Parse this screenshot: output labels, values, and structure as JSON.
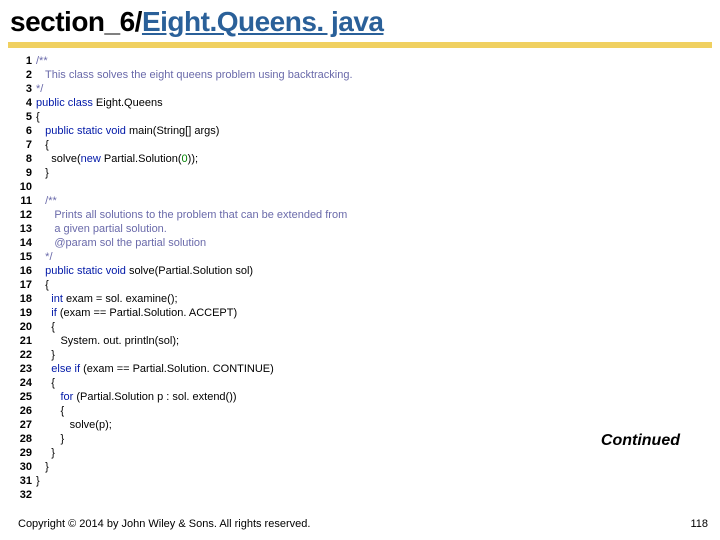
{
  "title": {
    "part1": "section_6/",
    "part2": "Eight.Queens. java"
  },
  "code_lines": [
    {
      "n": "1",
      "tokens": [
        {
          "t": "comment",
          "v": "/**"
        }
      ]
    },
    {
      "n": "2",
      "tokens": [
        {
          "t": "plain",
          "v": "   "
        },
        {
          "t": "comment",
          "v": "This class solves the eight queens problem using backtracking."
        }
      ]
    },
    {
      "n": "3",
      "tokens": [
        {
          "t": "comment",
          "v": "*/"
        }
      ]
    },
    {
      "n": "4",
      "tokens": [
        {
          "t": "kw",
          "v": "public class "
        },
        {
          "t": "plain",
          "v": "Eight.Queens"
        }
      ]
    },
    {
      "n": "5",
      "tokens": [
        {
          "t": "plain",
          "v": "{"
        }
      ]
    },
    {
      "n": "6",
      "tokens": [
        {
          "t": "plain",
          "v": "   "
        },
        {
          "t": "kw",
          "v": "public static void "
        },
        {
          "t": "plain",
          "v": "main(String[] args)"
        }
      ]
    },
    {
      "n": "7",
      "tokens": [
        {
          "t": "plain",
          "v": "   {"
        }
      ]
    },
    {
      "n": "8",
      "tokens": [
        {
          "t": "plain",
          "v": "     solve("
        },
        {
          "t": "kw",
          "v": "new "
        },
        {
          "t": "plain",
          "v": "Partial.Solution("
        },
        {
          "t": "num",
          "v": "0"
        },
        {
          "t": "plain",
          "v": "));"
        }
      ]
    },
    {
      "n": "9",
      "tokens": [
        {
          "t": "plain",
          "v": "   }"
        }
      ]
    },
    {
      "n": "10",
      "tokens": [
        {
          "t": "plain",
          "v": ""
        }
      ]
    },
    {
      "n": "11",
      "tokens": [
        {
          "t": "plain",
          "v": "   "
        },
        {
          "t": "comment",
          "v": "/**"
        }
      ]
    },
    {
      "n": "12",
      "tokens": [
        {
          "t": "plain",
          "v": "      "
        },
        {
          "t": "comment",
          "v": "Prints all solutions to the problem that can be extended from"
        }
      ]
    },
    {
      "n": "13",
      "tokens": [
        {
          "t": "plain",
          "v": "      "
        },
        {
          "t": "comment",
          "v": "a given partial solution."
        }
      ]
    },
    {
      "n": "14",
      "tokens": [
        {
          "t": "plain",
          "v": "      "
        },
        {
          "t": "comment",
          "v": "@param sol "
        },
        {
          "t": "comment",
          "v": "the partial solution"
        }
      ]
    },
    {
      "n": "15",
      "tokens": [
        {
          "t": "plain",
          "v": "   "
        },
        {
          "t": "comment",
          "v": "*/"
        }
      ]
    },
    {
      "n": "16",
      "tokens": [
        {
          "t": "plain",
          "v": "   "
        },
        {
          "t": "kw",
          "v": "public static void "
        },
        {
          "t": "plain",
          "v": "solve(Partial.Solution sol)"
        }
      ]
    },
    {
      "n": "17",
      "tokens": [
        {
          "t": "plain",
          "v": "   {"
        }
      ]
    },
    {
      "n": "18",
      "tokens": [
        {
          "t": "plain",
          "v": "     "
        },
        {
          "t": "kw",
          "v": "int "
        },
        {
          "t": "plain",
          "v": "exam = sol. examine();"
        }
      ]
    },
    {
      "n": "19",
      "tokens": [
        {
          "t": "plain",
          "v": "     "
        },
        {
          "t": "kw",
          "v": "if "
        },
        {
          "t": "plain",
          "v": "(exam == Partial.Solution. ACCEPT)"
        }
      ]
    },
    {
      "n": "20",
      "tokens": [
        {
          "t": "plain",
          "v": "     {"
        }
      ]
    },
    {
      "n": "21",
      "tokens": [
        {
          "t": "plain",
          "v": "        System. out. println(sol);"
        }
      ]
    },
    {
      "n": "22",
      "tokens": [
        {
          "t": "plain",
          "v": "     }"
        }
      ]
    },
    {
      "n": "23",
      "tokens": [
        {
          "t": "plain",
          "v": "     "
        },
        {
          "t": "kw",
          "v": "else if "
        },
        {
          "t": "plain",
          "v": "(exam == Partial.Solution. CONTINUE)"
        }
      ]
    },
    {
      "n": "24",
      "tokens": [
        {
          "t": "plain",
          "v": "     {"
        }
      ]
    },
    {
      "n": "25",
      "tokens": [
        {
          "t": "plain",
          "v": "        "
        },
        {
          "t": "kw",
          "v": "for "
        },
        {
          "t": "plain",
          "v": "(Partial.Solution p : sol. extend())"
        }
      ]
    },
    {
      "n": "26",
      "tokens": [
        {
          "t": "plain",
          "v": "        {"
        }
      ]
    },
    {
      "n": "27",
      "tokens": [
        {
          "t": "plain",
          "v": "           solve(p);"
        }
      ]
    },
    {
      "n": "28",
      "tokens": [
        {
          "t": "plain",
          "v": "        }"
        }
      ]
    },
    {
      "n": "29",
      "tokens": [
        {
          "t": "plain",
          "v": "     }"
        }
      ]
    },
    {
      "n": "30",
      "tokens": [
        {
          "t": "plain",
          "v": "   }"
        }
      ]
    },
    {
      "n": "31",
      "tokens": [
        {
          "t": "plain",
          "v": "}"
        }
      ]
    },
    {
      "n": "32",
      "tokens": [
        {
          "t": "plain",
          "v": ""
        }
      ]
    }
  ],
  "continued_label": "Continued",
  "footer": {
    "copyright": "Copyright © 2014 by John Wiley & Sons. All rights reserved.",
    "page": "118"
  },
  "colors": {
    "keyword": "#0018a8",
    "comment": "#6a6aaa",
    "number": "#008000",
    "link": "#2a6099",
    "bar": "#f0d060"
  }
}
